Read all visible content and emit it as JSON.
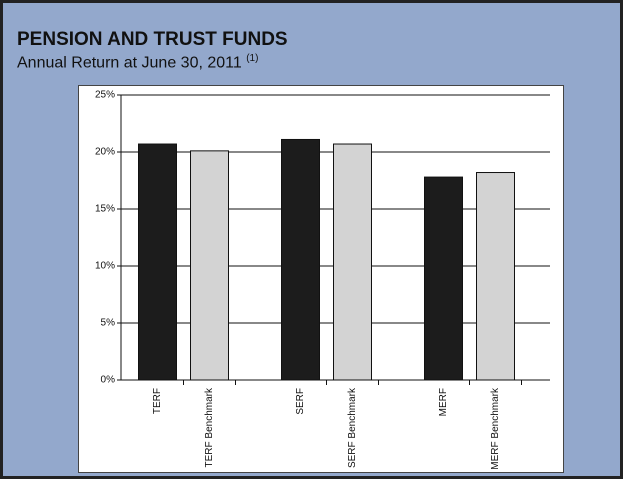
{
  "chart_data": {
    "type": "bar",
    "title": "PENSION AND TRUST FUNDS",
    "subtitle": "Annual Return at June 30, 2011",
    "subtitle_note": "(1)",
    "categories": [
      "TERF",
      "TERF Benchmark",
      "SERF",
      "SERF Benchmark",
      "MERF",
      "MERF Benchmark"
    ],
    "values": [
      20.7,
      20.1,
      21.1,
      20.7,
      17.8,
      18.2
    ],
    "colors": [
      "#1c1c1c",
      "#d3d3d3",
      "#1c1c1c",
      "#d3d3d3",
      "#1c1c1c",
      "#d3d3d3"
    ],
    "ylim": [
      0,
      25
    ],
    "yticks": [
      {
        "value": 0,
        "label": "0%"
      },
      {
        "value": 5,
        "label": "5%"
      },
      {
        "value": 10,
        "label": "10%"
      },
      {
        "value": 15,
        "label": "15%"
      },
      {
        "value": 20,
        "label": "20%"
      },
      {
        "value": 25,
        "label": "25%"
      }
    ],
    "grid": true
  }
}
